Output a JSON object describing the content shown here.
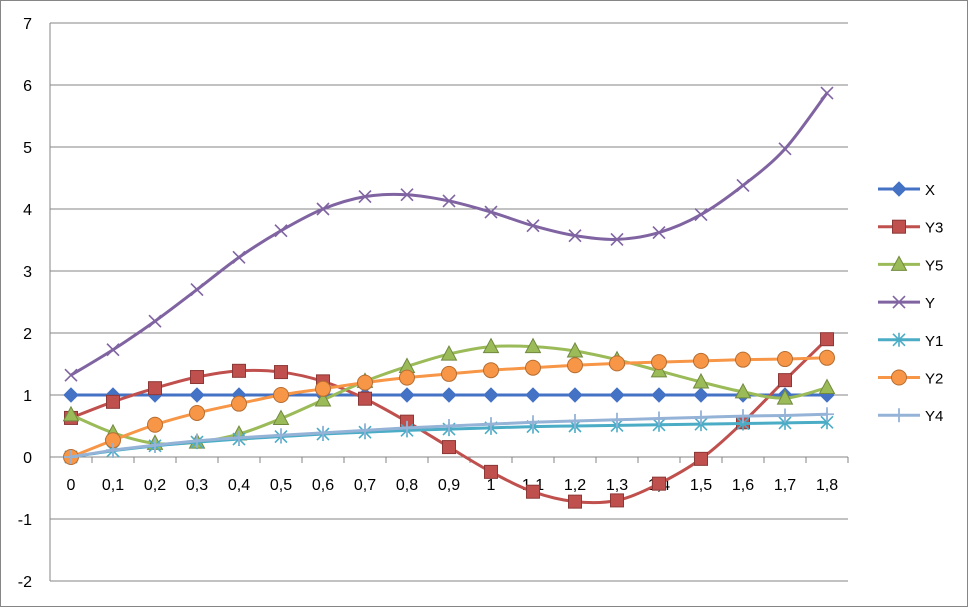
{
  "chart_data": {
    "type": "line",
    "title": "",
    "xlabel": "",
    "ylabel": "",
    "categories": [
      "0",
      "0,1",
      "0,2",
      "0,3",
      "0,4",
      "0,5",
      "0,6",
      "0,7",
      "0,8",
      "0,9",
      "1",
      "1,1",
      "1,2",
      "1,3",
      "1,4",
      "1,5",
      "1,6",
      "1,7",
      "1,8"
    ],
    "ylim": [
      -2,
      7
    ],
    "yticks": [
      "-2",
      "-1",
      "0",
      "1",
      "2",
      "3",
      "4",
      "5",
      "6",
      "7"
    ],
    "grid": "horizontal",
    "legend": "right",
    "series": [
      {
        "name": "X",
        "color": "#4472c4",
        "marker": "diamond",
        "values": [
          1,
          1,
          1,
          1,
          1,
          1,
          1,
          1,
          1,
          1,
          1,
          1,
          1,
          1,
          1,
          1,
          1,
          1,
          1
        ]
      },
      {
        "name": "Y3",
        "color": "#c0504d",
        "marker": "square",
        "values": [
          0.63,
          0.89,
          1.11,
          1.29,
          1.39,
          1.37,
          1.22,
          0.94,
          0.57,
          0.16,
          -0.24,
          -0.56,
          -0.72,
          -0.7,
          -0.43,
          -0.03,
          0.56,
          1.24,
          1.9
        ]
      },
      {
        "name": "Y5",
        "color": "#9bbb59",
        "marker": "triangle",
        "values": [
          0.68,
          0.39,
          0.22,
          0.24,
          0.37,
          0.62,
          0.92,
          1.22,
          1.46,
          1.66,
          1.78,
          1.78,
          1.71,
          1.57,
          1.39,
          1.21,
          1.05,
          0.95,
          1.12
        ]
      },
      {
        "name": "Y",
        "color": "#8064a2",
        "marker": "x",
        "values": [
          1.32,
          1.73,
          2.19,
          2.7,
          3.22,
          3.65,
          4.0,
          4.2,
          4.23,
          4.13,
          3.95,
          3.73,
          3.57,
          3.51,
          3.62,
          3.91,
          4.38,
          4.97,
          5.87
        ]
      },
      {
        "name": "Y1",
        "color": "#4bacc6",
        "marker": "star",
        "values": [
          0,
          0.1,
          0.18,
          0.24,
          0.29,
          0.33,
          0.37,
          0.4,
          0.43,
          0.45,
          0.47,
          0.49,
          0.5,
          0.51,
          0.52,
          0.53,
          0.54,
          0.55,
          0.56
        ]
      },
      {
        "name": "Y2",
        "color": "#f79646",
        "marker": "circle",
        "values": [
          0,
          0.27,
          0.52,
          0.71,
          0.86,
          1.0,
          1.1,
          1.2,
          1.28,
          1.34,
          1.4,
          1.44,
          1.48,
          1.51,
          1.53,
          1.55,
          1.57,
          1.58,
          1.6
        ]
      },
      {
        "name": "Y4",
        "color": "#95b3d7",
        "marker": "plus",
        "values": [
          0,
          0.11,
          0.19,
          0.26,
          0.31,
          0.35,
          0.39,
          0.43,
          0.47,
          0.5,
          0.53,
          0.56,
          0.58,
          0.6,
          0.62,
          0.64,
          0.66,
          0.67,
          0.69
        ]
      }
    ]
  }
}
